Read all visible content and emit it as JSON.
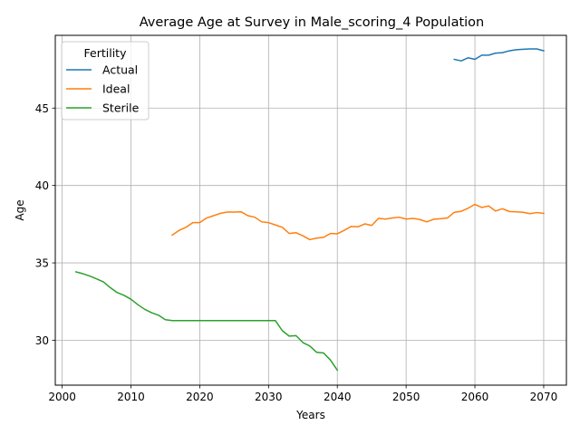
{
  "chart_data": {
    "type": "line",
    "title": "Average Age at Survey in Male_scoring_4 Population",
    "xlabel": "Years",
    "ylabel": "Age",
    "xlim": [
      1999,
      2073.3
    ],
    "ylim": [
      27.1,
      49.7
    ],
    "xticks": [
      2000,
      2010,
      2020,
      2030,
      2040,
      2050,
      2060,
      2070
    ],
    "yticks": [
      30,
      35,
      40,
      45
    ],
    "grid": true,
    "legend": {
      "title": "Fertility",
      "placement": "top-left",
      "entries": [
        "Actual",
        "Ideal",
        "Sterile"
      ]
    },
    "series": [
      {
        "name": "Actual",
        "color": "#1f77b4",
        "x": [
          2057,
          2058,
          2059,
          2060,
          2061,
          2062,
          2063,
          2064,
          2065,
          2066,
          2067,
          2068,
          2069,
          2070
        ],
        "y": [
          48.15,
          48.05,
          48.25,
          48.15,
          48.42,
          48.42,
          48.55,
          48.58,
          48.7,
          48.77,
          48.8,
          48.82,
          48.82,
          48.7
        ]
      },
      {
        "name": "Ideal",
        "color": "#ff7f0e",
        "x": [
          2016,
          2017,
          2018,
          2019,
          2020,
          2021,
          2022,
          2023,
          2024,
          2025,
          2026,
          2027,
          2028,
          2029,
          2030,
          2031,
          2032,
          2033,
          2034,
          2035,
          2036,
          2037,
          2038,
          2039,
          2040,
          2041,
          2042,
          2043,
          2044,
          2045,
          2046,
          2047,
          2048,
          2049,
          2050,
          2051,
          2052,
          2053,
          2054,
          2055,
          2056,
          2057,
          2058,
          2059,
          2060,
          2061,
          2062,
          2063,
          2064,
          2065,
          2066,
          2067,
          2068,
          2069,
          2070
        ],
        "y": [
          36.8,
          37.1,
          37.3,
          37.6,
          37.6,
          37.9,
          38.05,
          38.2,
          38.28,
          38.28,
          38.3,
          38.05,
          37.95,
          37.65,
          37.6,
          37.45,
          37.3,
          36.9,
          36.95,
          36.75,
          36.5,
          36.6,
          36.65,
          36.9,
          36.88,
          37.1,
          37.35,
          37.33,
          37.52,
          37.42,
          37.88,
          37.83,
          37.9,
          37.95,
          37.83,
          37.87,
          37.8,
          37.65,
          37.82,
          37.85,
          37.9,
          38.27,
          38.33,
          38.53,
          38.78,
          38.58,
          38.68,
          38.35,
          38.5,
          38.32,
          38.3,
          38.27,
          38.18,
          38.25,
          38.2
        ]
      },
      {
        "name": "Sterile",
        "color": "#2ca02c",
        "x": [
          2002,
          2003,
          2004,
          2005,
          2006,
          2007,
          2008,
          2009,
          2010,
          2011,
          2012,
          2013,
          2014,
          2015,
          2016,
          2017,
          2018,
          2019,
          2020,
          2021,
          2022,
          2023,
          2024,
          2025,
          2026,
          2027,
          2028,
          2029,
          2030,
          2031,
          2032,
          2033,
          2034,
          2035,
          2036,
          2037,
          2038,
          2039,
          2040
        ],
        "y": [
          34.42,
          34.3,
          34.15,
          33.97,
          33.77,
          33.4,
          33.08,
          32.9,
          32.65,
          32.3,
          32.0,
          31.78,
          31.62,
          31.33,
          31.27,
          31.27,
          31.27,
          31.27,
          31.27,
          31.27,
          31.27,
          31.27,
          31.27,
          31.27,
          31.27,
          31.27,
          31.27,
          31.27,
          31.27,
          31.27,
          30.62,
          30.27,
          30.3,
          29.85,
          29.63,
          29.22,
          29.18,
          28.72,
          28.07
        ]
      }
    ]
  }
}
